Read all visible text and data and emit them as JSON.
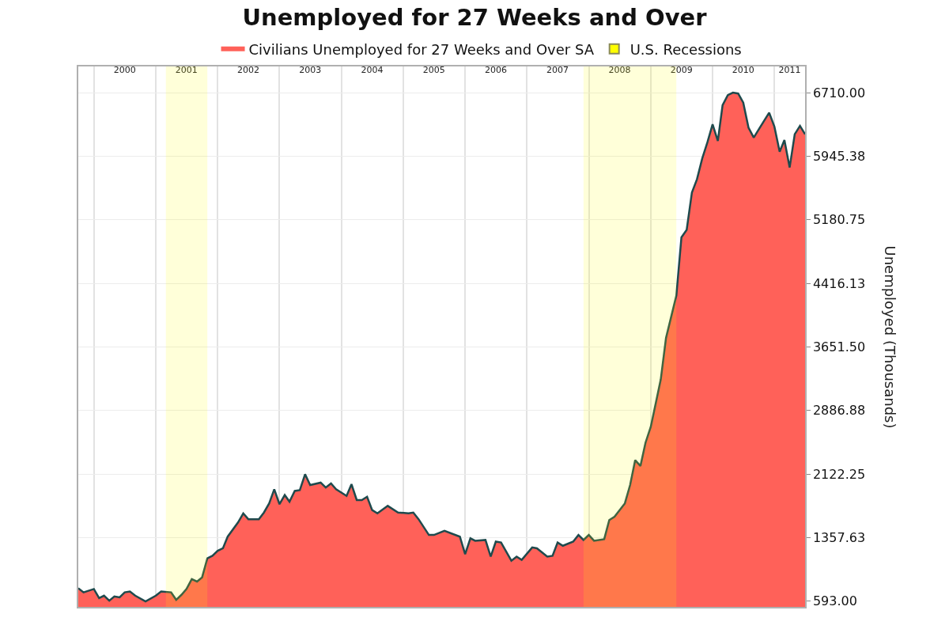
{
  "chart_data": {
    "type": "area",
    "title": "Unemployed for 27 Weeks and Over",
    "ylabel": "Unemployed (Thousands)",
    "x": [
      "1999-10",
      "1999-11",
      "2000-01",
      "2000-02",
      "2000-03",
      "2000-04",
      "2000-05",
      "2000-06",
      "2000-07",
      "2000-08",
      "2000-09",
      "2000-11",
      "2001-01",
      "2001-02",
      "2001-04",
      "2001-05",
      "2001-06",
      "2001-07",
      "2001-08",
      "2001-09",
      "2001-10",
      "2001-11",
      "2001-12",
      "2002-01",
      "2002-02",
      "2002-03",
      "2002-05",
      "2002-06",
      "2002-07",
      "2002-09",
      "2002-10",
      "2002-11",
      "2002-12",
      "2003-01",
      "2003-02",
      "2003-03",
      "2003-04",
      "2003-05",
      "2003-06",
      "2003-07",
      "2003-09",
      "2003-10",
      "2003-11",
      "2003-12",
      "2004-02",
      "2004-03",
      "2004-04",
      "2004-05",
      "2004-06",
      "2004-07",
      "2004-08",
      "2004-10",
      "2004-12",
      "2005-02",
      "2005-03",
      "2005-04",
      "2005-06",
      "2005-07",
      "2005-09",
      "2005-12",
      "2006-01",
      "2006-02",
      "2006-03",
      "2006-05",
      "2006-06",
      "2006-07",
      "2006-08",
      "2006-10",
      "2006-11",
      "2006-12",
      "2007-02",
      "2007-03",
      "2007-05",
      "2007-06",
      "2007-07",
      "2007-08",
      "2007-10",
      "2007-11",
      "2007-12",
      "2008-01",
      "2008-02",
      "2008-04",
      "2008-05",
      "2008-06",
      "2008-08",
      "2008-09",
      "2008-10",
      "2008-11",
      "2008-12",
      "2009-01",
      "2009-03",
      "2009-04",
      "2009-06",
      "2009-07",
      "2009-08",
      "2009-09",
      "2009-10",
      "2009-11",
      "2009-12",
      "2010-01",
      "2010-02",
      "2010-03",
      "2010-04",
      "2010-05",
      "2010-06",
      "2010-07",
      "2010-08",
      "2010-09",
      "2010-10",
      "2010-12",
      "2011-01",
      "2011-02",
      "2011-03",
      "2011-04",
      "2011-05",
      "2011-06",
      "2011-07"
    ],
    "series": [
      {
        "name": "Civilians Unemployed for 27 Weeks and Over SA",
        "color": "#ff6159",
        "values": [
          750,
          700,
          740,
          630,
          660,
          600,
          650,
          640,
          700,
          710,
          660,
          590,
          660,
          710,
          700,
          610,
          670,
          740,
          860,
          830,
          880,
          1110,
          1140,
          1200,
          1230,
          1370,
          1540,
          1650,
          1580,
          1580,
          1660,
          1770,
          1940,
          1760,
          1870,
          1790,
          1920,
          1930,
          2120,
          1990,
          2020,
          1960,
          2010,
          1940,
          1860,
          2000,
          1810,
          1810,
          1850,
          1690,
          1650,
          1740,
          1660,
          1650,
          1660,
          1580,
          1390,
          1390,
          1440,
          1370,
          1160,
          1350,
          1320,
          1330,
          1130,
          1310,
          1300,
          1080,
          1130,
          1090,
          1240,
          1230,
          1130,
          1140,
          1300,
          1260,
          1310,
          1390,
          1330,
          1390,
          1320,
          1340,
          1570,
          1610,
          1770,
          1990,
          2290,
          2220,
          2500,
          2690,
          3260,
          3760,
          4270,
          4970,
          5060,
          5510,
          5670,
          5920,
          6110,
          6330,
          6130,
          6560,
          6680,
          6710,
          6700,
          6590,
          6290,
          6170,
          6270,
          6470,
          6300,
          6000,
          6140,
          5810,
          6210,
          6310,
          6210
        ]
      },
      {
        "type": "line",
        "color": "#1f4a4d",
        "values": [
          750,
          700,
          740,
          630,
          660,
          600,
          650,
          640,
          700,
          710,
          660,
          590,
          660,
          710,
          700,
          610,
          670,
          740,
          860,
          830,
          880,
          1110,
          1140,
          1200,
          1230,
          1370,
          1540,
          1650,
          1580,
          1580,
          1660,
          1770,
          1940,
          1760,
          1870,
          1790,
          1920,
          1930,
          2120,
          1990,
          2020,
          1960,
          2010,
          1940,
          1860,
          2000,
          1810,
          1810,
          1850,
          1690,
          1650,
          1740,
          1660,
          1650,
          1660,
          1580,
          1390,
          1390,
          1440,
          1370,
          1160,
          1350,
          1320,
          1330,
          1130,
          1310,
          1300,
          1080,
          1130,
          1090,
          1240,
          1230,
          1130,
          1140,
          1300,
          1260,
          1310,
          1390,
          1330,
          1390,
          1320,
          1340,
          1570,
          1610,
          1770,
          1990,
          2290,
          2220,
          2500,
          2690,
          3260,
          3760,
          4270,
          4970,
          5060,
          5510,
          5670,
          5920,
          6110,
          6330,
          6130,
          6560,
          6680,
          6710,
          6700,
          6590,
          6290,
          6170,
          6270,
          6470,
          6300,
          6000,
          6140,
          5810,
          6210,
          6310,
          6210
        ]
      }
    ],
    "xlim": [
      "1999-10",
      "2011-07"
    ],
    "xticks": [
      {
        "value": "2000-01",
        "label": null
      },
      {
        "value": "2000-07",
        "label": "2000"
      },
      {
        "value": "2001-01",
        "label": null
      },
      {
        "value": "2001-07",
        "label": "2001"
      },
      {
        "value": "2002-01",
        "label": null
      },
      {
        "value": "2002-07",
        "label": "2002"
      },
      {
        "value": "2003-01",
        "label": null
      },
      {
        "value": "2003-07",
        "label": "2003"
      },
      {
        "value": "2004-01",
        "label": null
      },
      {
        "value": "2004-07",
        "label": "2004"
      },
      {
        "value": "2005-01",
        "label": null
      },
      {
        "value": "2005-07",
        "label": "2005"
      },
      {
        "value": "2006-01",
        "label": null
      },
      {
        "value": "2006-07",
        "label": "2006"
      },
      {
        "value": "2007-01",
        "label": null
      },
      {
        "value": "2007-07",
        "label": "2007"
      },
      {
        "value": "2008-01",
        "label": null
      },
      {
        "value": "2008-07",
        "label": "2008"
      },
      {
        "value": "2009-01",
        "label": null
      },
      {
        "value": "2009-07",
        "label": "2009"
      },
      {
        "value": "2010-01",
        "label": null
      },
      {
        "value": "2010-07",
        "label": "2010"
      },
      {
        "value": "2011-01",
        "label": null
      },
      {
        "value": "2011-04",
        "label": "2011"
      }
    ],
    "ylim": [
      525,
      7025
    ],
    "yticks": [
      {
        "value": 593,
        "label": "593.00"
      },
      {
        "value": 1357.63,
        "label": "1357.63"
      },
      {
        "value": 2122.25,
        "label": "2122.25"
      },
      {
        "value": 2886.88,
        "label": "2886.88"
      },
      {
        "value": 3651.5,
        "label": "3651.50"
      },
      {
        "value": 4416.13,
        "label": "4416.13"
      },
      {
        "value": 5180.75,
        "label": "5180.75"
      },
      {
        "value": 5945.38,
        "label": "5945.38"
      },
      {
        "value": 6710,
        "label": "6710.00"
      }
    ],
    "bands": [
      {
        "axis": "x",
        "from": "2001-03",
        "to": "2001-11",
        "label": "U.S. Recessions",
        "color": "#ffff00"
      },
      {
        "axis": "x",
        "from": "2007-12",
        "to": "2009-06",
        "color": "#ffff00"
      }
    ],
    "grid": true,
    "legend": "top"
  }
}
